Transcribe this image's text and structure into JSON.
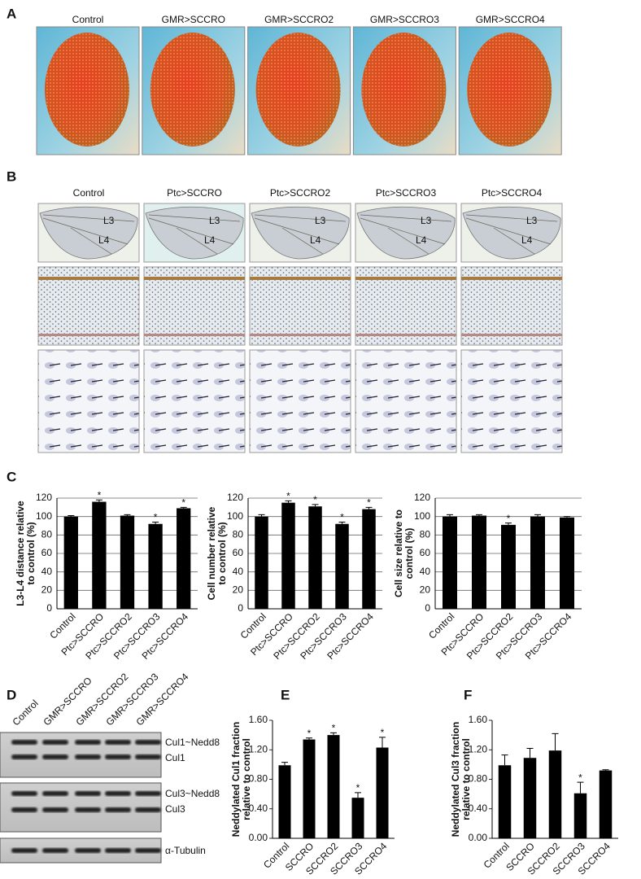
{
  "panel_labels": [
    "A",
    "B",
    "C",
    "D",
    "E",
    "F"
  ],
  "eye_genotypes": [
    "Control",
    "GMR>SCCRO",
    "GMR>SCCRO2",
    "GMR>SCCRO3",
    "GMR>SCCRO4"
  ],
  "wing_genotypes": [
    "Control",
    "Ptc>SCCRO",
    "Ptc>SCCRO2",
    "Ptc>SCCRO3",
    "Ptc>SCCRO4"
  ],
  "vein_labels": [
    "L3",
    "L4"
  ],
  "blot": {
    "lanes": [
      "Control",
      "GMR>SCCRO",
      "GMR>SCCRO2",
      "GMR>SCCRO3",
      "GMR>SCCRO4"
    ],
    "bands": [
      "Cul1~Nedd8",
      "Cul1",
      "Cul3~Nedd8",
      "Cul3",
      "α-Tubulin"
    ]
  },
  "chart_data": [
    {
      "type": "bar",
      "ylabel": [
        "L3-L4 distance relative",
        "to control (%)"
      ],
      "categories": [
        "Control",
        "Ptc>SCCRO",
        "Ptc>SCCRO2",
        "Ptc>SCCRO3",
        "Ptc>SCCRO4"
      ],
      "values": [
        100,
        116,
        101,
        92,
        109
      ],
      "errors": [
        1,
        2,
        1,
        2,
        1
      ],
      "significance": [
        null,
        "*",
        null,
        "*",
        "*"
      ],
      "color": "#000000",
      "ylim": [
        0,
        120
      ],
      "yticks": [
        0,
        20,
        40,
        60,
        80,
        100,
        120
      ],
      "grid": true
    },
    {
      "type": "bar",
      "ylabel": [
        "Cell number relative",
        "to control (%)"
      ],
      "categories": [
        "Control",
        "Ptc>SCCRO",
        "Ptc>SCCRO2",
        "Ptc>SCCRO3",
        "Ptc>SCCRO4"
      ],
      "values": [
        100,
        115,
        111,
        92,
        108
      ],
      "errors": [
        2,
        2,
        2,
        2,
        2
      ],
      "significance": [
        null,
        "*",
        "*",
        "*",
        "*"
      ],
      "color": "#000000",
      "ylim": [
        0,
        120
      ],
      "yticks": [
        0,
        20,
        40,
        60,
        80,
        100,
        120
      ],
      "grid": true
    },
    {
      "type": "bar",
      "ylabel": [
        "Cell size relative to",
        "control (%)"
      ],
      "categories": [
        "Control",
        "Ptc>SCCRO",
        "Ptc>SCCRO2",
        "Ptc>SCCRO3",
        "Ptc>SCCRO4"
      ],
      "values": [
        100,
        101,
        91,
        100,
        99
      ],
      "errors": [
        2,
        1,
        2,
        2,
        1
      ],
      "significance": [
        null,
        null,
        "*",
        null,
        null
      ],
      "color": "#000000",
      "ylim": [
        0,
        120
      ],
      "yticks": [
        0,
        20,
        40,
        60,
        80,
        100,
        120
      ],
      "grid": true
    },
    {
      "type": "bar",
      "ylabel": [
        "Neddylated Cul1 fraction",
        "relative to control"
      ],
      "categories": [
        "Control",
        "SCCRO",
        "SCCRO2",
        "SCCRO3",
        "SCCRO4"
      ],
      "values": [
        0.99,
        1.34,
        1.4,
        0.55,
        1.23
      ],
      "errors": [
        0.04,
        0.02,
        0.03,
        0.07,
        0.14
      ],
      "significance": [
        null,
        "*",
        "*",
        "*",
        "*"
      ],
      "color": "#000000",
      "ylim": [
        0,
        1.6
      ],
      "yticks": [
        {
          "value": 0,
          "label": "0.00"
        },
        {
          "value": 0.4,
          "label": "0.40"
        },
        {
          "value": 0.8,
          "label": "0.80"
        },
        {
          "value": 1.2,
          "label": "1.20"
        },
        {
          "value": 1.6,
          "label": "1.60"
        }
      ],
      "grid": false
    },
    {
      "type": "bar",
      "ylabel": [
        "Neddylated Cul3 fraction",
        "relative to control"
      ],
      "categories": [
        "Control",
        "SCCRO",
        "SCCRO2",
        "SCCRO3",
        "SCCRO4"
      ],
      "values": [
        0.99,
        1.09,
        1.19,
        0.61,
        0.92
      ],
      "errors": [
        0.14,
        0.13,
        0.23,
        0.15,
        0.01
      ],
      "significance": [
        null,
        null,
        null,
        "*",
        null
      ],
      "color": "#000000",
      "ylim": [
        0,
        1.6
      ],
      "yticks": [
        {
          "value": 0,
          "label": "0.00"
        },
        {
          "value": 0.4,
          "label": "0.40"
        },
        {
          "value": 0.8,
          "label": "0.80"
        },
        {
          "value": 1.2,
          "label": "1.20"
        },
        {
          "value": 1.6,
          "label": "1.60"
        }
      ],
      "grid": false
    }
  ]
}
